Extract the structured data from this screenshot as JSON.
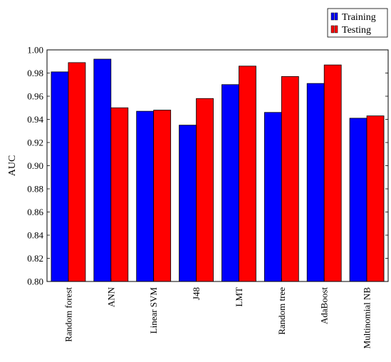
{
  "chart_data": {
    "type": "bar",
    "ylabel": "AUC",
    "xlabel": "",
    "title": "",
    "ylim": [
      0.8,
      1.0
    ],
    "yticks": [
      "0.80",
      "0.82",
      "0.84",
      "0.86",
      "0.88",
      "0.90",
      "0.92",
      "0.94",
      "0.96",
      "0.98",
      "1.00"
    ],
    "categories": [
      "Random forest",
      "ANN",
      "Linear SVM",
      "J48",
      "LMT",
      "Random tree",
      "AdaBoost",
      "Multinomial NB"
    ],
    "series": [
      {
        "name": "Training",
        "color": "#0000ff",
        "values": [
          0.981,
          0.992,
          0.947,
          0.935,
          0.97,
          0.946,
          0.971,
          0.941
        ]
      },
      {
        "name": "Testing",
        "color": "#ff0000",
        "values": [
          0.989,
          0.95,
          0.948,
          0.958,
          0.986,
          0.977,
          0.987,
          0.943
        ]
      }
    ],
    "legend_position": "top-right",
    "grid": false
  }
}
